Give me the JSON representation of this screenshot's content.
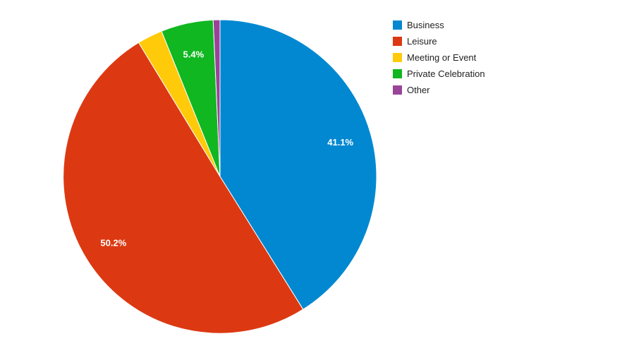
{
  "chart_data": {
    "type": "pie",
    "title": "",
    "legend_position": "right",
    "slices": [
      {
        "label": "Business",
        "value": 41.1,
        "display_label": "41.1%",
        "color": "#0288d1"
      },
      {
        "label": "Leisure",
        "value": 50.2,
        "display_label": "50.2%",
        "color": "#dc3912"
      },
      {
        "label": "Meeting or Event",
        "value": 2.6,
        "display_label": "",
        "color": "#ffca0a"
      },
      {
        "label": "Private Celebration",
        "value": 5.4,
        "display_label": "5.4%",
        "color": "#10b720"
      },
      {
        "label": "Other",
        "value": 0.7,
        "display_label": "",
        "color": "#994499"
      }
    ]
  }
}
